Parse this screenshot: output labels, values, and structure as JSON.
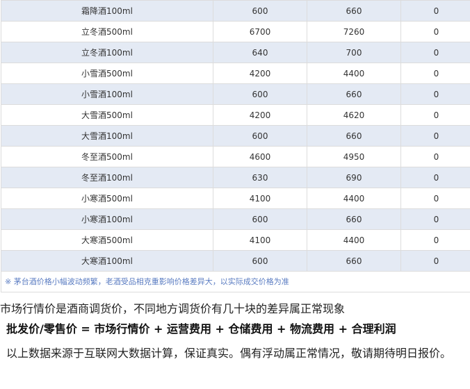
{
  "rows": [
    [
      "霜降酒100ml",
      "600",
      "660",
      "0"
    ],
    [
      "立冬酒500ml",
      "6700",
      "7260",
      "0"
    ],
    [
      "立冬酒100ml",
      "640",
      "700",
      "0"
    ],
    [
      "小雪酒500ml",
      "4200",
      "4400",
      "0"
    ],
    [
      "小雪酒100ml",
      "600",
      "660",
      "0"
    ],
    [
      "大雪酒500ml",
      "4200",
      "4620",
      "0"
    ],
    [
      "大雪酒100ml",
      "600",
      "660",
      "0"
    ],
    [
      "冬至酒500ml",
      "4600",
      "4950",
      "0"
    ],
    [
      "冬至酒100ml",
      "630",
      "690",
      "0"
    ],
    [
      "小寒酒500ml",
      "4100",
      "4400",
      "0"
    ],
    [
      "小寒酒100ml",
      "600",
      "660",
      "0"
    ],
    [
      "大寒酒500ml",
      "4100",
      "4400",
      "0"
    ],
    [
      "大寒酒100ml",
      "600",
      "660",
      "0"
    ]
  ],
  "note": "※ 茅台酒价格小幅波动频繁，老酒受品相克重影响价格差异大，以实际成交价格为准",
  "para1": "市场行情价是酒商调货价，不同地方调货价有几十块的差异属正常现象",
  "para2": "批发价/零售价 = 市场行情价 + 运营费用 + 仓储费用 + 物流费用 + 合理利润",
  "para3": "以上数据来源于互联网大数据计算，保证真实。偶有浮动属正常情况，敬请期待明日报价。"
}
